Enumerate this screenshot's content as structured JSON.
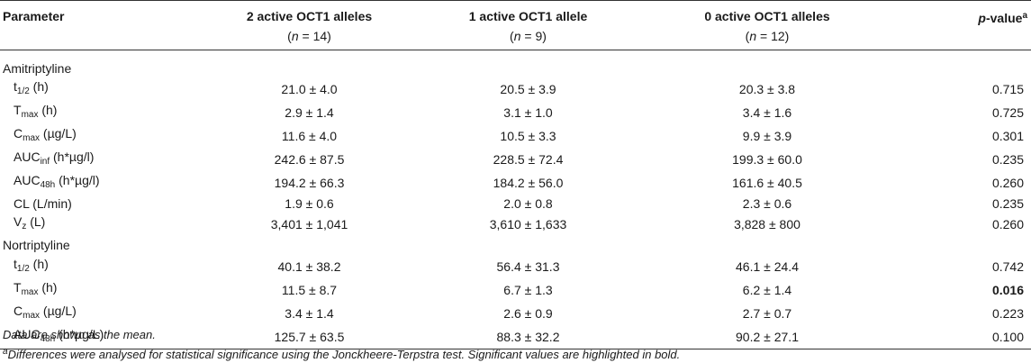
{
  "header": {
    "col_param": "Parameter",
    "col1": "2 active OCT1 alleles",
    "col1_n": "14",
    "col2": "1 active OCT1 allele",
    "col2_n": "9",
    "col3": "0 active OCT1 alleles",
    "col3_n": "12",
    "col_p": "p",
    "col_p_rest": "-value",
    "col_p_sup": "a",
    "n_label": "n",
    "n_eq": " = "
  },
  "sections": [
    {
      "title": "Amitriptyline",
      "rows": [
        {
          "base": "t",
          "sub": "1/2",
          "unit": " (h)",
          "v1": "21.0 ± 4.0",
          "v2": "20.5 ± 3.9",
          "v3": "20.3 ± 3.8",
          "p": "0.715",
          "sig": false
        },
        {
          "base": "T",
          "sub": "max",
          "unit": " (h)",
          "v1": "2.9 ± 1.4",
          "v2": "3.1 ± 1.0",
          "v3": "3.4 ± 1.6",
          "p": "0.725",
          "sig": false
        },
        {
          "base": "C",
          "sub": "max",
          "unit": " (µg/L)",
          "v1": "11.6 ± 4.0",
          "v2": "10.5 ± 3.3",
          "v3": "9.9 ± 3.9",
          "p": "0.301",
          "sig": false
        },
        {
          "base": "AUC",
          "sub": "inf",
          "unit": " (h*µg/l)",
          "v1": "242.6 ± 87.5",
          "v2": "228.5 ± 72.4",
          "v3": "199.3 ± 60.0",
          "p": "0.235",
          "sig": false
        },
        {
          "base": "AUC",
          "sub": "48h",
          "unit": " (h*µg/l)",
          "v1": "194.2 ± 66.3",
          "v2": "184.2 ± 56.0",
          "v3": "161.6 ± 40.5",
          "p": "0.260",
          "sig": false
        },
        {
          "base": "CL (L/min)",
          "sub": "",
          "unit": "",
          "v1": "1.9 ± 0.6",
          "v2": "2.0 ± 0.8",
          "v3": "2.3 ± 0.6",
          "p": "0.235",
          "sig": false
        },
        {
          "base": "V",
          "sub": "z",
          "unit": " (L)",
          "v1": "3,401 ± 1,041",
          "v2": "3,610 ± 1,633",
          "v3": "3,828 ± 800",
          "p": "0.260",
          "sig": false
        }
      ]
    },
    {
      "title": "Nortriptyline",
      "rows": [
        {
          "base": "t",
          "sub": "1/2",
          "unit": " (h)",
          "v1": "40.1 ± 38.2",
          "v2": "56.4 ± 31.3",
          "v3": "46.1 ± 24.4",
          "p": "0.742",
          "sig": false
        },
        {
          "base": "T",
          "sub": "max",
          "unit": " (h)",
          "v1": "11.5 ± 8.7",
          "v2": "6.7 ± 1.3",
          "v3": "6.2 ± 1.4",
          "p": "0.016",
          "sig": true
        },
        {
          "base": "C",
          "sub": "max",
          "unit": " (µg/L)",
          "v1": "3.4 ± 1.4",
          "v2": "2.6 ± 0.9",
          "v3": "2.7 ± 0.7",
          "p": "0.223",
          "sig": false
        },
        {
          "base": "AUC",
          "sub": "48h",
          "unit": " (h*µg/L)",
          "v1": "125.7 ± 63.5",
          "v2": "88.3 ± 32.2",
          "v3": "90.2 ± 27.1",
          "p": "0.100",
          "sig": false
        }
      ]
    }
  ],
  "notes": {
    "note1": "Data are shown as the mean.",
    "note2_sup": "a",
    "note2": "Differences were analysed for statistical significance using the Jonckheere-Terpstra test. Significant values are highlighted in bold."
  }
}
